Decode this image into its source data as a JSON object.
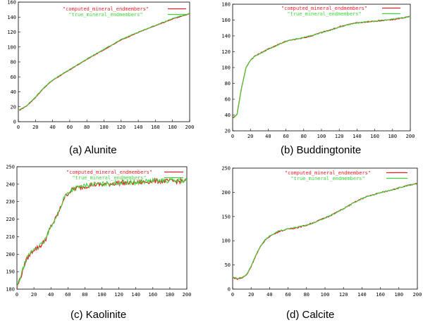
{
  "colors": {
    "computed": "#e8202a",
    "true": "#3ed63a",
    "frame": "#000000"
  },
  "chart_data": [
    {
      "type": "line",
      "caption": "(a) Alunite",
      "legend": [
        "\"computed_mineral_endmembers\"",
        "\"true_mineral_endmembers\""
      ],
      "xlim": [
        0,
        200
      ],
      "ylim": [
        0,
        160
      ],
      "xticks": [
        0,
        20,
        40,
        60,
        80,
        100,
        120,
        140,
        160,
        180,
        200
      ],
      "yticks": [
        0,
        20,
        40,
        60,
        80,
        100,
        120,
        140,
        160
      ],
      "noise": 0.4,
      "series": [
        {
          "name": "computed_mineral_endmembers",
          "x": [
            0,
            10,
            20,
            30,
            40,
            50,
            60,
            80,
            100,
            120,
            140,
            160,
            180,
            200
          ],
          "y": [
            15,
            22,
            33,
            46,
            56,
            63,
            70,
            84,
            97,
            110,
            120,
            129,
            138,
            145
          ]
        },
        {
          "name": "true_mineral_endmembers",
          "x": [
            0,
            10,
            20,
            30,
            40,
            50,
            60,
            80,
            100,
            120,
            140,
            160,
            180,
            200
          ],
          "y": [
            15,
            22,
            33,
            46,
            56,
            63,
            70,
            84,
            97,
            110,
            120,
            129,
            138,
            145
          ]
        }
      ]
    },
    {
      "type": "line",
      "caption": "(b) Buddingtonite",
      "legend": [
        "\"computed_mineral_endmembers\"",
        "\"true_mineral_endmembers\""
      ],
      "xlim": [
        0,
        200
      ],
      "ylim": [
        20,
        180
      ],
      "xticks": [
        0,
        20,
        40,
        60,
        80,
        100,
        120,
        140,
        160,
        180,
        200
      ],
      "yticks": [
        20,
        40,
        60,
        80,
        100,
        120,
        140,
        160,
        180
      ],
      "noise": 0.6,
      "series": [
        {
          "name": "computed_mineral_endmembers",
          "x": [
            0,
            5,
            10,
            15,
            20,
            25,
            30,
            40,
            50,
            60,
            70,
            80,
            90,
            100,
            110,
            120,
            130,
            140,
            150,
            160,
            170,
            180,
            190,
            200
          ],
          "y": [
            36,
            42,
            75,
            100,
            110,
            115,
            118,
            124,
            129,
            134,
            136,
            138,
            141,
            145,
            148,
            152,
            155,
            157,
            158,
            159,
            160,
            161,
            163,
            165
          ]
        },
        {
          "name": "true_mineral_endmembers",
          "x": [
            0,
            5,
            10,
            15,
            20,
            25,
            30,
            40,
            50,
            60,
            70,
            80,
            90,
            100,
            110,
            120,
            130,
            140,
            150,
            160,
            170,
            180,
            190,
            200
          ],
          "y": [
            35,
            41,
            74,
            99,
            109,
            114,
            117,
            123,
            128,
            133,
            136,
            138,
            141,
            144,
            147,
            151,
            154,
            156,
            158,
            159,
            160,
            161,
            163,
            164
          ]
        }
      ]
    },
    {
      "type": "line",
      "caption": "(c) Kaolinite",
      "legend": [
        "\"computed_mineral_endmembers\"",
        "\"true_mineral_endmembers\""
      ],
      "xlim": [
        0,
        200
      ],
      "ylim": [
        180,
        250
      ],
      "xticks": [
        0,
        20,
        40,
        60,
        80,
        100,
        120,
        140,
        160,
        180,
        200
      ],
      "yticks": [
        180,
        190,
        200,
        210,
        220,
        230,
        240,
        250
      ],
      "noise": 1.3,
      "series": [
        {
          "name": "computed_mineral_endmembers",
          "x": [
            0,
            5,
            10,
            15,
            20,
            25,
            30,
            35,
            40,
            45,
            50,
            55,
            60,
            65,
            70,
            80,
            90,
            100,
            120,
            140,
            160,
            180,
            200
          ],
          "y": [
            181,
            188,
            196,
            200,
            203,
            204,
            206,
            210,
            216,
            220,
            225,
            232,
            235,
            237,
            238,
            239,
            240,
            240,
            241,
            241,
            242,
            242,
            242
          ]
        },
        {
          "name": "true_mineral_endmembers",
          "x": [
            0,
            5,
            10,
            15,
            20,
            25,
            30,
            35,
            40,
            45,
            50,
            55,
            60,
            65,
            70,
            80,
            90,
            100,
            120,
            140,
            160,
            180,
            200
          ],
          "y": [
            181,
            188,
            196,
            200,
            203,
            204,
            206,
            210,
            216,
            220,
            225,
            232,
            235,
            237,
            238,
            239,
            240,
            240,
            241,
            241,
            242,
            242,
            242
          ]
        }
      ]
    },
    {
      "type": "line",
      "caption": "(d) Calcite",
      "legend": [
        "\"computed_mineral_endmembers\"",
        "\"true_mineral_endmembers\""
      ],
      "xlim": [
        0,
        200
      ],
      "ylim": [
        0,
        250
      ],
      "xticks": [
        0,
        20,
        40,
        60,
        80,
        100,
        120,
        140,
        160,
        180,
        200
      ],
      "yticks": [
        0,
        50,
        100,
        150,
        200,
        250
      ],
      "noise": 1.2,
      "series": [
        {
          "name": "computed_mineral_endmembers",
          "x": [
            0,
            5,
            10,
            15,
            20,
            25,
            30,
            35,
            40,
            50,
            60,
            70,
            80,
            90,
            100,
            110,
            120,
            130,
            140,
            150,
            160,
            170,
            180,
            190,
            200
          ],
          "y": [
            25,
            22,
            24,
            30,
            48,
            70,
            88,
            102,
            110,
            120,
            125,
            128,
            133,
            140,
            148,
            157,
            167,
            178,
            188,
            195,
            200,
            205,
            210,
            215,
            219
          ]
        },
        {
          "name": "true_mineral_endmembers",
          "x": [
            0,
            5,
            10,
            15,
            20,
            25,
            30,
            35,
            40,
            50,
            60,
            70,
            80,
            90,
            100,
            110,
            120,
            130,
            140,
            150,
            160,
            170,
            180,
            190,
            200
          ],
          "y": [
            25,
            22,
            24,
            30,
            48,
            70,
            88,
            102,
            110,
            120,
            125,
            128,
            132,
            139,
            147,
            156,
            166,
            177,
            187,
            194,
            199,
            204,
            209,
            214,
            218
          ]
        }
      ]
    }
  ]
}
